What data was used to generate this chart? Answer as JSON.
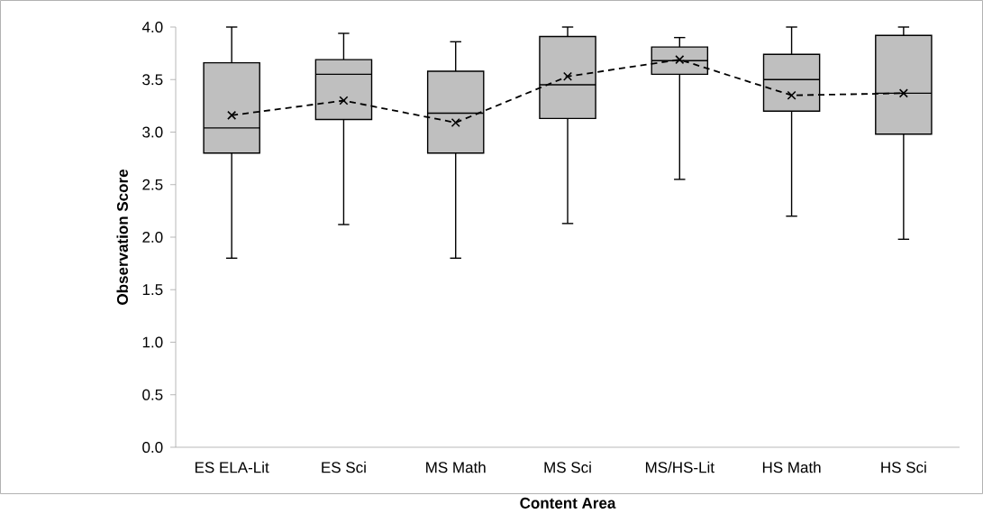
{
  "chart_data": {
    "type": "box",
    "xlabel": "Content Area",
    "ylabel": "Observation Score",
    "categories": [
      "ES ELA-Lit",
      "ES Sci",
      "MS Math",
      "MS Sci",
      "MS/HS-Lit",
      "HS Math",
      "HS Sci"
    ],
    "ylim": [
      0,
      4
    ],
    "yticks": [
      {
        "value": 0,
        "label": "0.0"
      },
      {
        "value": 0.5,
        "label": "0.5"
      },
      {
        "value": 1,
        "label": "1.0"
      },
      {
        "value": 1.5,
        "label": "1.5"
      },
      {
        "value": 2,
        "label": "2.0"
      },
      {
        "value": 2.5,
        "label": "2.5"
      },
      {
        "value": 3,
        "label": "3.0"
      },
      {
        "value": 3.5,
        "label": "3.5"
      },
      {
        "value": 4,
        "label": "4.0"
      }
    ],
    "grid": false,
    "legend": false,
    "series": [
      {
        "color": "#bfbfbf",
        "boxes": [
          {
            "low": 1.8,
            "q1": 2.8,
            "median": 3.04,
            "q3": 3.66,
            "high": 4.0
          },
          {
            "low": 2.12,
            "q1": 3.12,
            "median": 3.55,
            "q3": 3.69,
            "high": 3.94
          },
          {
            "low": 1.8,
            "q1": 2.8,
            "median": 3.18,
            "q3": 3.58,
            "high": 3.86
          },
          {
            "low": 2.13,
            "q1": 3.13,
            "median": 3.45,
            "q3": 3.91,
            "high": 4.0
          },
          {
            "low": 2.55,
            "q1": 3.55,
            "median": 3.68,
            "q3": 3.81,
            "high": 3.9
          },
          {
            "low": 2.2,
            "q1": 3.2,
            "median": 3.5,
            "q3": 3.74,
            "high": 4.0
          },
          {
            "low": 1.98,
            "q1": 2.98,
            "median": 3.37,
            "q3": 3.92,
            "high": 4.0
          }
        ]
      },
      {
        "type": "line",
        "color": "#000000",
        "marker": "cross",
        "line_style": "dashed",
        "values": [
          3.16,
          3.3,
          3.09,
          3.53,
          3.69,
          3.35,
          3.37
        ]
      }
    ]
  }
}
